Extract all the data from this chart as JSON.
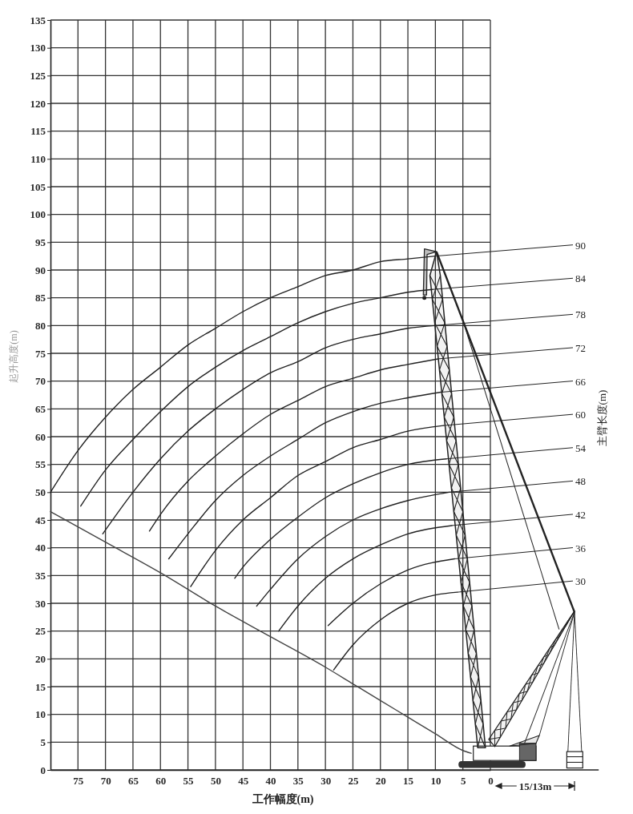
{
  "chart_data": {
    "type": "line",
    "xlabel": "工作幅度(m)",
    "ylabel": "起升高度(m)",
    "annotations": [
      "主臂长度(m)",
      "15/13m"
    ],
    "xlim": [
      80,
      0
    ],
    "ylim": [
      0,
      135
    ],
    "xticks": [
      75,
      70,
      65,
      60,
      55,
      50,
      45,
      40,
      35,
      30,
      25,
      20,
      15,
      10,
      5,
      0
    ],
    "yticks": [
      0,
      5,
      10,
      15,
      20,
      25,
      30,
      35,
      40,
      45,
      50,
      55,
      60,
      65,
      70,
      75,
      80,
      85,
      90,
      95,
      100,
      105,
      110,
      115,
      120,
      125,
      130,
      135
    ],
    "grid": true,
    "series": [
      {
        "name": "90",
        "color": "#222222",
        "x": [
          80,
          75,
          70,
          65,
          60,
          55,
          50,
          45,
          40,
          35,
          30,
          25,
          20,
          15,
          10
        ],
        "values": [
          50,
          57.5,
          63.5,
          68.5,
          72.5,
          76.5,
          79.5,
          82.5,
          85,
          87,
          89,
          90,
          91.5,
          92,
          92.5
        ]
      },
      {
        "name": "84",
        "color": "#222222",
        "x": [
          74.5,
          70,
          65,
          60,
          55,
          50,
          45,
          40,
          35,
          30,
          25,
          20,
          15,
          10.5
        ],
        "values": [
          47.5,
          54,
          59.5,
          64.5,
          69,
          72.5,
          75.5,
          78,
          80.5,
          82.5,
          84,
          85,
          86,
          86.5
        ]
      },
      {
        "name": "78",
        "color": "#222222",
        "x": [
          70.5,
          65,
          60,
          55,
          50,
          45,
          40,
          35,
          30,
          25,
          20,
          15,
          10
        ],
        "values": [
          42.5,
          50,
          56,
          61,
          65,
          68.5,
          71.5,
          73.5,
          76,
          77.5,
          78.5,
          79.5,
          80
        ]
      },
      {
        "name": "72",
        "color": "#222222",
        "x": [
          62,
          60,
          55,
          50,
          45,
          40,
          35,
          30,
          25,
          20,
          15,
          9.5
        ],
        "values": [
          43,
          46,
          52,
          56.5,
          60.5,
          64,
          66.5,
          69,
          70.5,
          72,
          73,
          74
        ]
      },
      {
        "name": "66",
        "color": "#222222",
        "x": [
          58.5,
          55,
          50,
          45,
          40,
          35,
          30,
          25,
          20,
          15,
          9
        ],
        "values": [
          38,
          42.5,
          48.5,
          53,
          56.5,
          59.5,
          62.5,
          64.5,
          66,
          67,
          68
        ]
      },
      {
        "name": "60",
        "color": "#222222",
        "x": [
          54.5,
          50,
          45,
          40,
          35,
          30,
          25,
          20,
          15,
          8.5
        ],
        "values": [
          33,
          39.5,
          45,
          49,
          53,
          55.5,
          58,
          59.5,
          61,
          62
        ]
      },
      {
        "name": "54",
        "color": "#222222",
        "x": [
          46.5,
          45,
          40,
          35,
          30,
          25,
          20,
          15,
          8
        ],
        "values": [
          34.5,
          36.5,
          41.5,
          45.5,
          49,
          51.5,
          53.5,
          55,
          56
        ]
      },
      {
        "name": "48",
        "color": "#222222",
        "x": [
          42.5,
          40,
          35,
          30,
          25,
          20,
          15,
          7.5
        ],
        "values": [
          29.5,
          32.5,
          38,
          42,
          45,
          47,
          48.5,
          50
        ]
      },
      {
        "name": "42",
        "color": "#222222",
        "x": [
          38.5,
          35,
          30,
          25,
          20,
          15,
          7
        ],
        "values": [
          25,
          29.5,
          34.5,
          38,
          40.5,
          42.5,
          44
        ]
      },
      {
        "name": "36",
        "color": "#222222",
        "x": [
          29.5,
          25,
          20,
          15,
          6.5
        ],
        "values": [
          26,
          30,
          33.5,
          36,
          38
        ]
      },
      {
        "name": "30",
        "color": "#222222",
        "x": [
          28.5,
          25,
          20,
          15,
          10,
          6
        ],
        "values": [
          18,
          22.5,
          27,
          30,
          31.5,
          32
        ]
      },
      {
        "color": "#444444",
        "x": [
          80,
          70,
          60,
          50,
          40,
          30,
          25,
          20,
          15,
          10,
          5,
          3.5
        ],
        "values": [
          46.5,
          41,
          35.5,
          29.5,
          24,
          18.5,
          15.5,
          12.5,
          9.5,
          6.5,
          3.5,
          3
        ]
      }
    ]
  }
}
